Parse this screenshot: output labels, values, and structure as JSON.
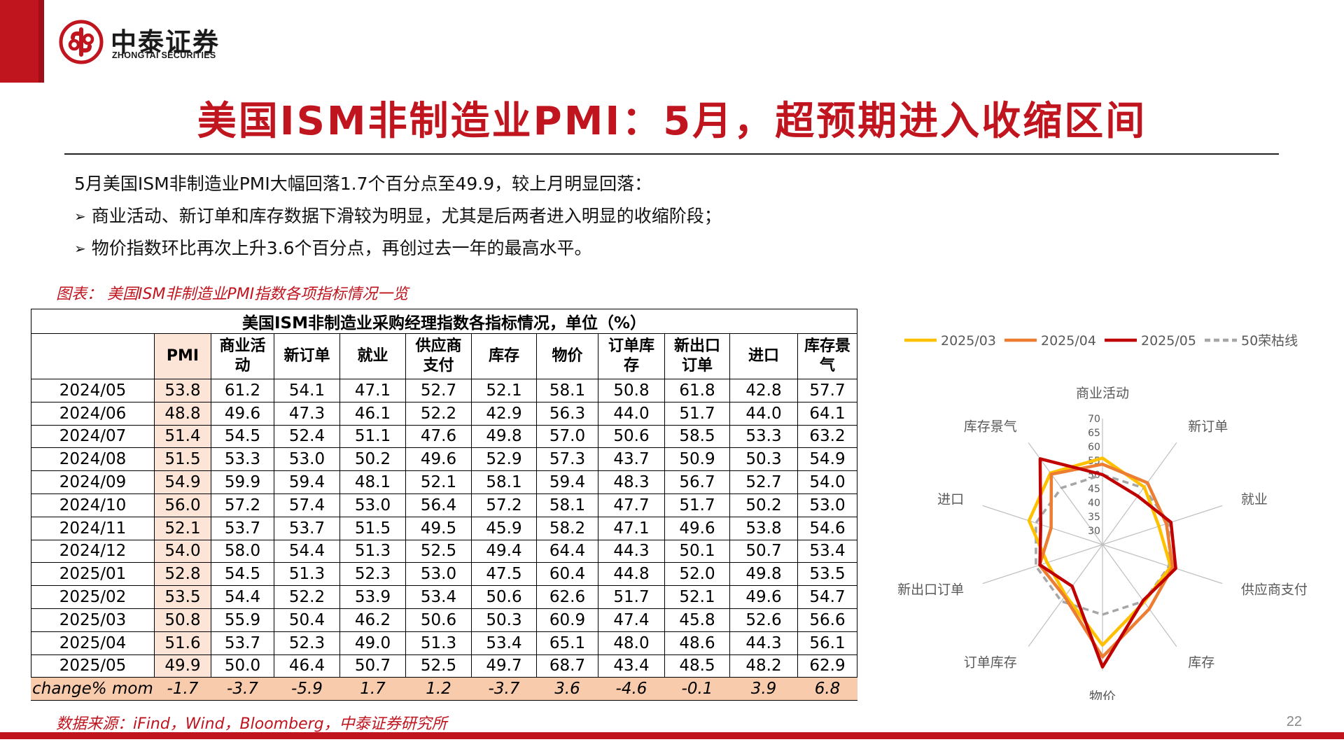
{
  "logo": {
    "name_cn": "中泰证券",
    "name_en": "ZHONGTAI SECURITIES"
  },
  "title": "美国ISM非制造业PMI：5月，超预期进入收缩区间",
  "intro": "5月美国ISM非制造业PMI大幅回落1.7个百分点至49.9，较上月明显回落：",
  "bullets": [
    "商业活动、新订单和库存数据下滑较为明显，尤其是后两者进入明显的收缩阶段；",
    "物价指数环比再次上升3.6个百分点，再创过去一年的最高水平。"
  ],
  "caption": "图表：  美国ISM非制造业PMI指数各项指标情况一览",
  "table": {
    "title": "美国ISM非制造业采购经理指数各指标情况，单位（%）",
    "headers": [
      "",
      "PMI",
      "商业活\n动",
      "新订单",
      "就业",
      "供应商\n支付",
      "库存",
      "物价",
      "订单库\n存",
      "新出口\n订单",
      "进口",
      "库存景\n气"
    ],
    "rows": [
      [
        "2024/05",
        "53.8",
        "61.2",
        "54.1",
        "47.1",
        "52.7",
        "52.1",
        "58.1",
        "50.8",
        "61.8",
        "42.8",
        "57.7"
      ],
      [
        "2024/06",
        "48.8",
        "49.6",
        "47.3",
        "46.1",
        "52.2",
        "42.9",
        "56.3",
        "44.0",
        "51.7",
        "44.0",
        "64.1"
      ],
      [
        "2024/07",
        "51.4",
        "54.5",
        "52.4",
        "51.1",
        "47.6",
        "49.8",
        "57.0",
        "50.6",
        "58.5",
        "53.3",
        "63.2"
      ],
      [
        "2024/08",
        "51.5",
        "53.3",
        "53.0",
        "50.2",
        "49.6",
        "52.9",
        "57.3",
        "43.7",
        "50.9",
        "50.3",
        "54.9"
      ],
      [
        "2024/09",
        "54.9",
        "59.9",
        "59.4",
        "48.1",
        "52.1",
        "58.1",
        "59.4",
        "48.3",
        "56.7",
        "52.7",
        "54.0"
      ],
      [
        "2024/10",
        "56.0",
        "57.2",
        "57.4",
        "53.0",
        "56.4",
        "57.2",
        "58.1",
        "47.7",
        "51.7",
        "50.2",
        "53.0"
      ],
      [
        "2024/11",
        "52.1",
        "53.7",
        "53.7",
        "51.5",
        "49.5",
        "45.9",
        "58.2",
        "47.1",
        "49.6",
        "53.8",
        "54.6"
      ],
      [
        "2024/12",
        "54.0",
        "58.0",
        "54.4",
        "51.3",
        "52.5",
        "49.4",
        "64.4",
        "44.3",
        "50.1",
        "50.7",
        "53.4"
      ],
      [
        "2025/01",
        "52.8",
        "54.5",
        "51.3",
        "52.3",
        "53.0",
        "47.5",
        "60.4",
        "44.8",
        "52.0",
        "49.8",
        "53.5"
      ],
      [
        "2025/02",
        "53.5",
        "54.4",
        "52.2",
        "53.9",
        "53.4",
        "50.6",
        "62.6",
        "51.7",
        "52.1",
        "49.6",
        "54.7"
      ],
      [
        "2025/03",
        "50.8",
        "55.9",
        "50.4",
        "46.2",
        "50.6",
        "50.3",
        "60.9",
        "47.4",
        "45.8",
        "52.6",
        "56.6"
      ],
      [
        "2025/04",
        "51.6",
        "53.7",
        "52.3",
        "49.0",
        "51.3",
        "53.4",
        "65.1",
        "48.0",
        "48.6",
        "44.3",
        "56.1"
      ],
      [
        "2025/05",
        "49.9",
        "50.0",
        "46.4",
        "50.7",
        "52.5",
        "49.7",
        "68.7",
        "43.4",
        "48.5",
        "48.2",
        "62.9"
      ]
    ],
    "change_row": [
      "change% mom",
      "-1.7",
      "-3.7",
      "-5.9",
      "1.7",
      "1.2",
      "-3.7",
      "3.6",
      "-4.6",
      "-0.1",
      "3.9",
      "6.8"
    ]
  },
  "chart_data": {
    "type": "radar",
    "axes": [
      "商业活动",
      "新订单",
      "就业",
      "供应商支付",
      "库存",
      "物价",
      "订单库存",
      "新出口订单",
      "进口",
      "库存景气"
    ],
    "ticks": [
      30,
      35,
      40,
      45,
      50,
      55,
      60,
      65,
      70
    ],
    "rmin": 25,
    "rmax": 70,
    "legend_position": "top",
    "series": [
      {
        "name": "2025/03",
        "color": "#ffc000",
        "dashed": false,
        "values": [
          55.9,
          50.4,
          46.2,
          50.6,
          50.3,
          60.9,
          47.4,
          45.8,
          52.6,
          56.6
        ]
      },
      {
        "name": "2025/04",
        "color": "#ed7d31",
        "dashed": false,
        "values": [
          53.7,
          52.3,
          49.0,
          51.3,
          53.4,
          65.1,
          48.0,
          48.6,
          44.3,
          56.1
        ]
      },
      {
        "name": "2025/05",
        "color": "#c00000",
        "dashed": false,
        "values": [
          50.0,
          46.4,
          50.7,
          52.5,
          49.7,
          68.7,
          43.4,
          48.5,
          48.2,
          62.9
        ]
      },
      {
        "name": "50荣枯线",
        "color": "#a6a6a6",
        "dashed": true,
        "values": [
          50,
          50,
          50,
          50,
          50,
          50,
          50,
          50,
          50,
          50
        ]
      }
    ]
  },
  "source": "数据来源：iFind，Wind，Bloomberg，中泰证券研究所",
  "page_number": "22",
  "colors": {
    "brand": "#c0141e",
    "pmi_cell": "#fce4d6",
    "change_row": "#f8cbad"
  }
}
